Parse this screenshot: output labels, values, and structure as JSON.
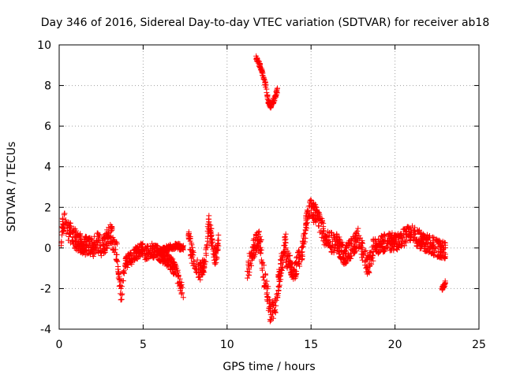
{
  "chart_data": {
    "type": "scatter",
    "title": "Day 346 of 2016, Sidereal Day-to-day VTEC variation (SDTVAR) for receiver ab18",
    "xlabel": "GPS time / hours",
    "ylabel": "SDTVAR / TECUs",
    "xlim": [
      0,
      25
    ],
    "ylim": [
      -4,
      10
    ],
    "x_ticks": [
      0,
      5,
      10,
      15,
      20,
      25
    ],
    "y_ticks": [
      -4,
      -2,
      0,
      2,
      4,
      6,
      8,
      10
    ],
    "x_tick_labels": [
      "0",
      "5",
      "10",
      "15",
      "20",
      "25"
    ],
    "y_tick_labels": [
      "-4",
      "-2",
      "0",
      "2",
      "4",
      "6",
      "8",
      "10"
    ],
    "grid": true,
    "marker": "+",
    "series": [
      {
        "name": "SDTVAR",
        "color": "#ff0000",
        "segments": [
          {
            "x": [
              0.1,
              0.2,
              0.3,
              0.5,
              0.8,
              1.0,
              1.3,
              1.6,
              2.0,
              2.3,
              2.6,
              2.9,
              3.1,
              3.3,
              3.5
            ],
            "y": [
              0.3,
              1.0,
              1.3,
              0.9,
              0.6,
              0.4,
              0.2,
              0.1,
              0.0,
              0.3,
              0.0,
              0.5,
              0.7,
              0.1,
              -0.3
            ],
            "spread": 0.5
          },
          {
            "x": [
              3.5,
              3.6,
              3.7,
              3.8,
              3.9,
              4.1,
              4.4,
              4.7,
              5.0
            ],
            "y": [
              -1.0,
              -1.8,
              -2.4,
              -1.5,
              -0.8,
              -0.6,
              -0.4,
              -0.2,
              0.0
            ],
            "spread": 0.35
          },
          {
            "x": [
              5.0,
              5.5,
              6.0,
              6.4,
              6.8,
              7.0,
              7.2,
              7.4
            ],
            "y": [
              -0.3,
              -0.1,
              -0.3,
              -0.6,
              -0.9,
              -1.3,
              -1.8,
              -2.2
            ],
            "spread": 0.35
          },
          {
            "x": [
              6.0,
              6.5,
              7.0,
              7.4
            ],
            "y": [
              -0.2,
              0.0,
              0.1,
              0.0
            ],
            "spread": 0.15
          },
          {
            "x": [
              7.7,
              7.9,
              8.1,
              8.4,
              8.7,
              8.9,
              9.1,
              9.3,
              9.5
            ],
            "y": [
              0.6,
              -0.3,
              -0.8,
              -1.2,
              -0.7,
              1.3,
              0.4,
              -0.5,
              0.4
            ],
            "spread": 0.45
          },
          {
            "x": [
              11.2,
              11.5,
              11.8,
              12.0,
              12.2,
              12.4,
              12.6,
              12.9,
              13.2,
              13.5
            ],
            "y": [
              -1.2,
              -0.3,
              0.5,
              0.2,
              -1.5,
              -2.2,
              -3.4,
              -2.6,
              -1.0,
              0.3
            ],
            "spread": 0.55
          },
          {
            "x": [
              11.7,
              11.9,
              12.1,
              12.3,
              12.45,
              12.6,
              12.8,
              13.0
            ],
            "y": [
              9.4,
              9.1,
              8.6,
              8.0,
              7.2,
              7.0,
              7.3,
              7.8
            ],
            "spread": 0.12
          },
          {
            "x": [
              13.5,
              13.8,
              14.0,
              14.2,
              14.4,
              14.6,
              14.8,
              15.0
            ],
            "y": [
              -0.4,
              -0.9,
              -1.3,
              -0.6,
              -0.5,
              0.5,
              1.8,
              2.0
            ],
            "spread": 0.45
          },
          {
            "x": [
              15.0,
              15.4,
              15.8,
              16.2,
              16.6,
              17.0,
              17.4,
              17.8,
              18.1,
              18.4,
              18.7
            ],
            "y": [
              1.9,
              1.5,
              0.6,
              0.3,
              0.2,
              -0.4,
              0.0,
              0.5,
              -0.3,
              -0.9,
              -0.2
            ],
            "spread": 0.5
          },
          {
            "x": [
              18.7,
              19.0,
              19.5,
              20.0,
              20.5,
              21.0,
              21.5,
              22.0,
              22.5,
              23.0
            ],
            "y": [
              0.0,
              0.1,
              0.3,
              0.3,
              0.5,
              0.7,
              0.4,
              0.2,
              0.0,
              -0.1
            ],
            "spread": 0.45
          },
          {
            "x": [
              22.8,
              22.9,
              23.0
            ],
            "y": [
              -2.0,
              -1.9,
              -1.7
            ],
            "spread": 0.1
          }
        ]
      }
    ]
  }
}
